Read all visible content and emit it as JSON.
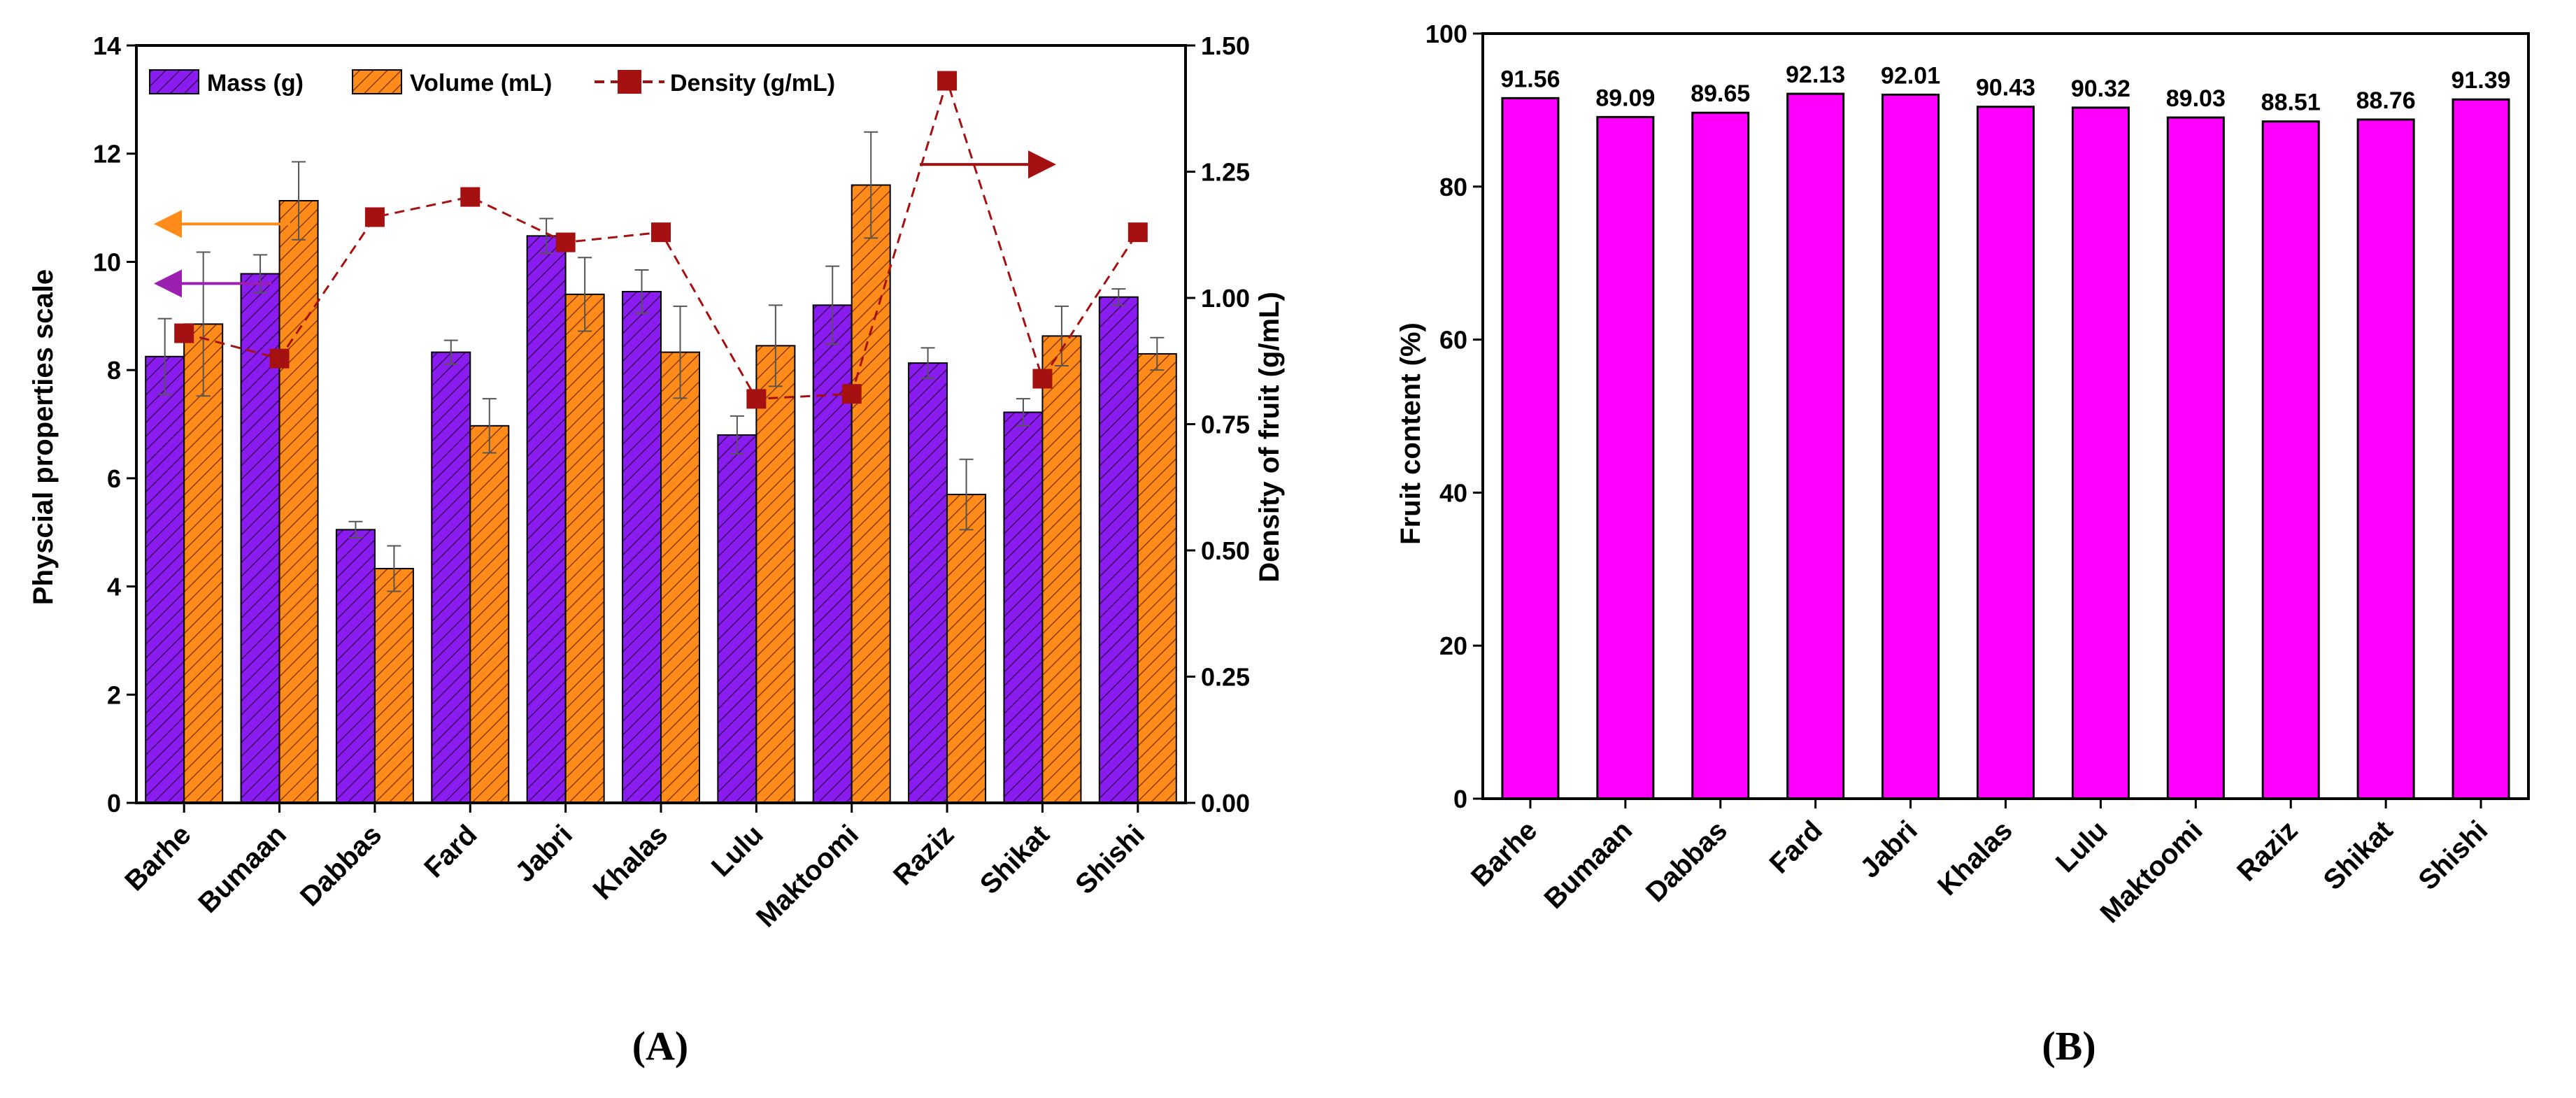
{
  "chart_data": [
    {
      "panel_label": "(A)",
      "type": "bar",
      "categories": [
        "Barhe",
        "Bumaan",
        "Dabbas",
        "Fard",
        "Jabri",
        "Khalas",
        "Lulu",
        "Maktoomi",
        "Raziz",
        "Shikat",
        "Shishi"
      ],
      "ylabel": "Physcial properties scale",
      "ylim": [
        0,
        14
      ],
      "yticks": [
        "0",
        "2",
        "4",
        "6",
        "8",
        "10",
        "12",
        "14"
      ],
      "y2label": "Density of fruit (g/mL)",
      "y2lim": [
        0,
        1.5
      ],
      "y2ticks": [
        "0.00",
        "0.25",
        "0.50",
        "0.75",
        "1.00",
        "1.25",
        "1.50"
      ],
      "legend_position": "top-left",
      "series": [
        {
          "name": "Mass (g)",
          "kind": "bar",
          "axis": "left",
          "color": "#8a1cf0",
          "hatch": true,
          "values": [
            8.25,
            9.78,
            5.05,
            8.33,
            10.48,
            9.45,
            6.8,
            9.2,
            8.13,
            7.22,
            9.35
          ],
          "errors": [
            0.7,
            0.35,
            0.15,
            0.22,
            0.32,
            0.4,
            0.35,
            0.72,
            0.28,
            0.25,
            0.15
          ]
        },
        {
          "name": "Volume (mL)",
          "kind": "bar",
          "axis": "left",
          "color": "#ff8c1a",
          "hatch": true,
          "values": [
            8.85,
            11.13,
            4.33,
            6.97,
            9.4,
            8.33,
            8.45,
            11.42,
            5.7,
            8.63,
            8.3
          ],
          "errors": [
            1.33,
            0.72,
            0.42,
            0.5,
            0.68,
            0.85,
            0.75,
            0.98,
            0.65,
            0.55,
            0.3
          ]
        },
        {
          "name": "Density (g/mL)",
          "kind": "line",
          "axis": "right",
          "color": "#a51010",
          "style": "dashed",
          "marker": "square",
          "values": [
            0.93,
            0.88,
            1.16,
            1.2,
            1.11,
            1.13,
            0.8,
            0.81,
            1.43,
            0.84,
            1.13
          ]
        }
      ],
      "annotations": [
        {
          "name": "Volume axis arrow",
          "color": "#ff8c1a",
          "points_to": "left",
          "at_y": 10.7
        },
        {
          "name": "Mass axis arrow",
          "color": "#9b1fb0",
          "points_to": "left",
          "at_y": 9.6
        },
        {
          "name": "Density axis arrow",
          "color": "#a51010",
          "points_to": "right",
          "at_y": 11.8
        }
      ]
    },
    {
      "panel_label": "(B)",
      "type": "bar",
      "categories": [
        "Barhe",
        "Bumaan",
        "Dabbas",
        "Fard",
        "Jabri",
        "Khalas",
        "Lulu",
        "Maktoomi",
        "Raziz",
        "Shikat",
        "Shishi"
      ],
      "ylabel": "Fruit content (%)",
      "ylim": [
        0,
        100
      ],
      "yticks": [
        "0",
        "20",
        "40",
        "60",
        "80",
        "100"
      ],
      "series": [
        {
          "name": "Fruit content (%)",
          "color": "#ff00ff",
          "values": [
            91.56,
            89.09,
            89.65,
            92.13,
            92.01,
            90.43,
            90.32,
            89.03,
            88.51,
            88.76,
            91.39
          ],
          "labels": [
            "91.56",
            "89.09",
            "89.65",
            "92.13",
            "92.01",
            "90.43",
            "90.32",
            "89.03",
            "88.51",
            "88.76",
            "91.39"
          ]
        }
      ]
    }
  ]
}
